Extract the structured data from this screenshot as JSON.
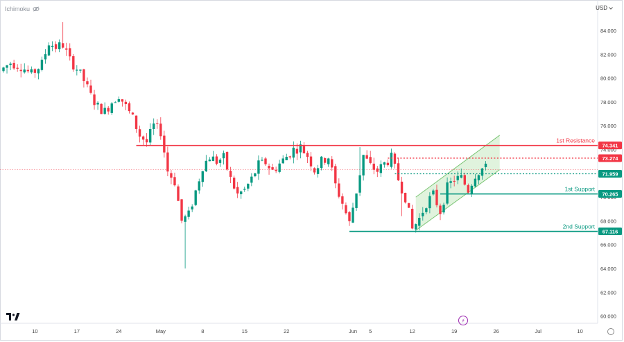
{
  "header": {
    "indicator_label": "Ichimoku",
    "currency": "USD"
  },
  "chart_data": {
    "type": "candlestick",
    "currency": "USD",
    "ylim": [
      59.0,
      86.0
    ],
    "y_ticks": [
      "84.000",
      "82.000",
      "80.000",
      "78.000",
      "76.000",
      "74.000",
      "72.000",
      "70.000",
      "68.000",
      "66.000",
      "64.000",
      "62.000",
      "60.000"
    ],
    "x_ticks": [
      {
        "label": "10",
        "bar": 9
      },
      {
        "label": "17",
        "bar": 21
      },
      {
        "label": "24",
        "bar": 33
      },
      {
        "label": "May",
        "bar": 45
      },
      {
        "label": "8",
        "bar": 57
      },
      {
        "label": "15",
        "bar": 69
      },
      {
        "label": "22",
        "bar": 81
      },
      {
        "label": "Jun",
        "bar": 100
      },
      {
        "label": "5",
        "bar": 105
      },
      {
        "label": "12",
        "bar": 117
      },
      {
        "label": "19",
        "bar": 129
      },
      {
        "label": "26",
        "bar": 141
      },
      {
        "label": "Jul",
        "bar": 153
      },
      {
        "label": "10",
        "bar": 165
      }
    ],
    "anchors": [
      [
        0,
        80.6
      ],
      [
        3,
        81.3
      ],
      [
        6,
        81.0
      ],
      [
        9,
        80.3
      ],
      [
        12,
        81.2
      ],
      [
        14,
        83.0
      ],
      [
        16,
        82.6
      ],
      [
        18,
        82.8
      ],
      [
        20,
        81.5
      ],
      [
        22,
        80.8
      ],
      [
        24,
        79.8
      ],
      [
        26,
        78.5
      ],
      [
        28,
        77.6
      ],
      [
        30,
        77.2
      ],
      [
        32,
        78.0
      ],
      [
        34,
        78.6
      ],
      [
        36,
        77.6
      ],
      [
        38,
        76.6
      ],
      [
        40,
        75.2
      ],
      [
        42,
        74.6
      ],
      [
        44,
        76.0
      ],
      [
        46,
        75.5
      ],
      [
        48,
        72.2
      ],
      [
        50,
        71.3
      ],
      [
        52,
        68.0
      ],
      [
        54,
        68.5
      ],
      [
        56,
        70.5
      ],
      [
        58,
        72.6
      ],
      [
        60,
        73.4
      ],
      [
        62,
        73.0
      ],
      [
        64,
        73.3
      ],
      [
        66,
        71.5
      ],
      [
        68,
        70.2
      ],
      [
        70,
        70.6
      ],
      [
        72,
        71.5
      ],
      [
        74,
        72.7
      ],
      [
        76,
        72.9
      ],
      [
        78,
        72.2
      ],
      [
        80,
        72.8
      ],
      [
        82,
        73.4
      ],
      [
        84,
        74.0
      ],
      [
        86,
        74.2
      ],
      [
        88,
        73.5
      ],
      [
        90,
        72.3
      ],
      [
        92,
        73.0
      ],
      [
        94,
        73.4
      ],
      [
        96,
        71.0
      ],
      [
        98,
        69.5
      ],
      [
        100,
        67.8
      ],
      [
        102,
        70.5
      ],
      [
        104,
        73.5
      ],
      [
        106,
        72.6
      ],
      [
        108,
        72.2
      ],
      [
        110,
        72.8
      ],
      [
        112,
        73.3
      ],
      [
        114,
        71.5
      ],
      [
        116,
        70.0
      ],
      [
        118,
        67.3
      ],
      [
        120,
        68.2
      ],
      [
        122,
        69.5
      ],
      [
        124,
        70.2
      ],
      [
        126,
        68.8
      ],
      [
        128,
        70.8
      ],
      [
        130,
        71.5
      ],
      [
        132,
        71.6
      ],
      [
        134,
        70.6
      ],
      [
        136,
        71.9
      ],
      [
        138,
        72.4
      ]
    ],
    "spikes": [
      {
        "bar": 17,
        "high": 84.7
      },
      {
        "bar": 52,
        "low": 64.0
      },
      {
        "bar": 102,
        "high": 74.2
      },
      {
        "bar": 114,
        "low": 68.4
      }
    ],
    "levels": [
      {
        "value": 74.341,
        "label": "74.341",
        "name": "1st Resistance",
        "color": "#f23645",
        "style": "solid",
        "from_bar": 38
      },
      {
        "value": 73.274,
        "label": "73.274",
        "color": "#f23645",
        "style": "dotted",
        "from_bar": 110
      },
      {
        "value": 71.959,
        "label": "71.959",
        "color": "#089981",
        "style": "dotted",
        "from_bar": 112
      },
      {
        "value": 70.265,
        "label": "70.265",
        "name": "1st Support",
        "color": "#089981",
        "style": "solid",
        "from_bar": 125
      },
      {
        "value": 67.116,
        "label": "67.116",
        "name": "2nd Support",
        "color": "#089981",
        "style": "solid",
        "from_bar": 99
      }
    ],
    "channel": {
      "lower_start": [
        118,
        67.2
      ],
      "lower_end": [
        142,
        72.3
      ],
      "upper_start": [
        118,
        70.0
      ],
      "upper_end": [
        142,
        75.2
      ],
      "fill": "#d8f0d4",
      "stroke": "#7cc576"
    },
    "colors": {
      "up": "#089981",
      "down": "#f23645",
      "last_price_line": "#f23645"
    },
    "last_price": 72.3
  }
}
